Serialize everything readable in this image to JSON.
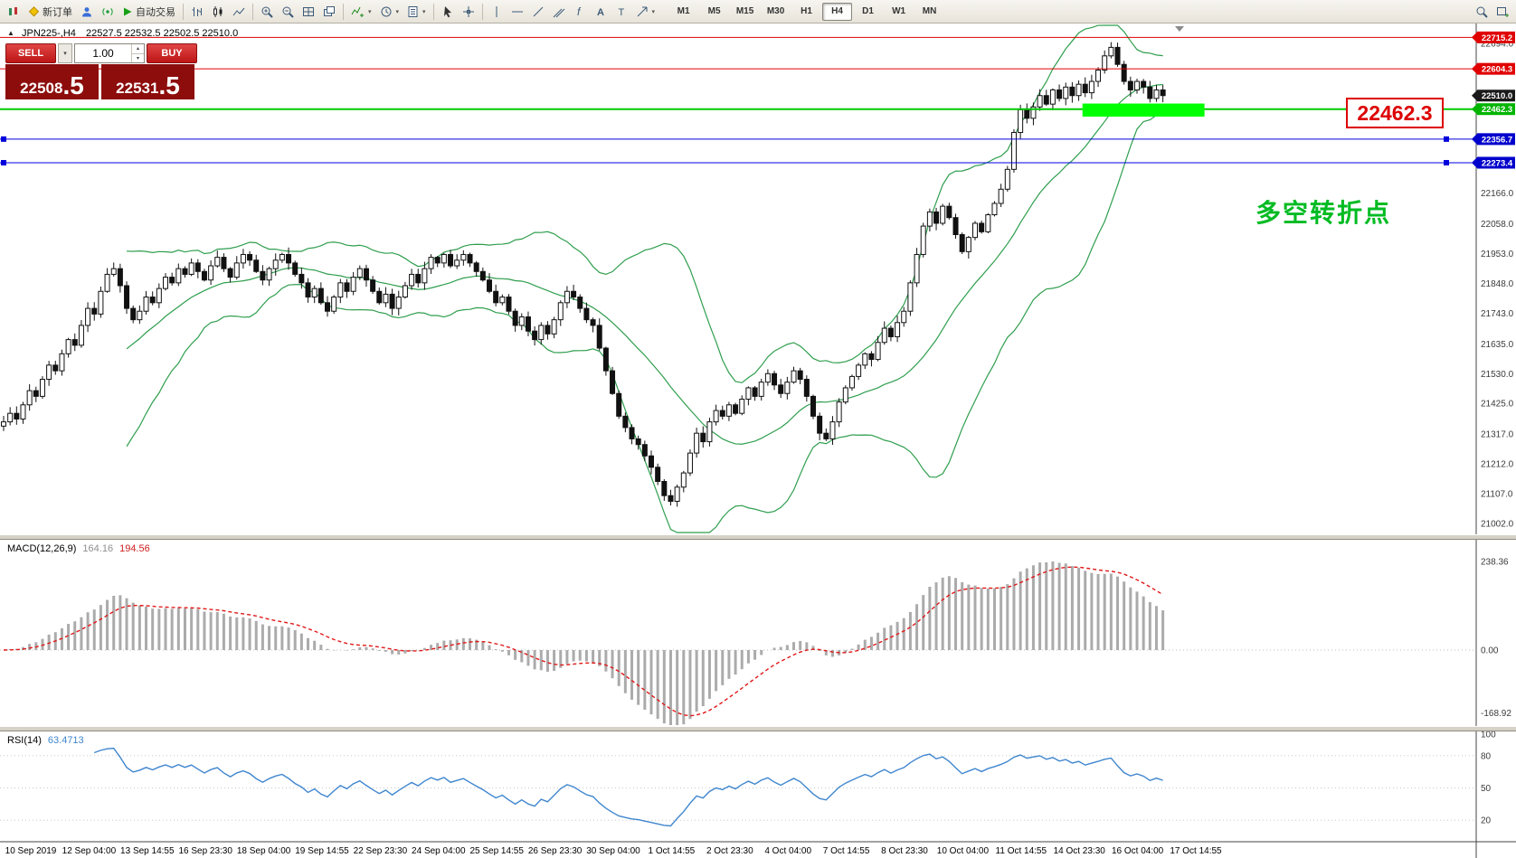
{
  "toolbar": {
    "new_order_label": "新订单",
    "autotrading_label": "自动交易",
    "timeframes": [
      "M1",
      "M5",
      "M15",
      "M30",
      "H1",
      "H4",
      "D1",
      "W1",
      "MN"
    ],
    "active_timeframe": "H4",
    "icon_names": [
      "app-icon",
      "new-order-icon",
      "profile-icon",
      "signal-icon",
      "autotrading-icon",
      "bar-chart-icon",
      "candlestick-chart-icon",
      "line-chart-icon",
      "zoom-in-icon",
      "zoom-out-icon",
      "tile-windows-icon",
      "cascade-windows-icon",
      "indicators-icon",
      "periods-icon",
      "templates-icon",
      "cursor-icon",
      "crosshair-icon",
      "vertical-line-icon",
      "horizontal-line-icon",
      "trendline-icon",
      "channel-icon",
      "fibonacci-icon",
      "text-icon",
      "label-icon",
      "arrow-icon",
      "search-icon",
      "new-chart-icon"
    ]
  },
  "chart": {
    "symbol_title": "JPN225-,H4",
    "ohlc_text": "22527.5 22532.5 22502.5 22510.0",
    "annotation_text": "多空转折点",
    "callout_text": "22462.3"
  },
  "trade": {
    "sell_label": "SELL",
    "buy_label": "BUY",
    "volume": "1.00",
    "sell_main": "22508",
    "sell_frac": ".5",
    "buy_main": "22531",
    "buy_frac": ".5"
  },
  "macd": {
    "title": "MACD(12,26,9)",
    "value_main": "164.16",
    "value_signal": "194.56"
  },
  "rsi": {
    "title": "RSI(14)",
    "value": "63.4713"
  },
  "chart_data": {
    "type": "candlestick",
    "symbol": "JPN225-",
    "timeframe": "H4",
    "closes": [
      21360,
      21390,
      21370,
      21420,
      21470,
      21450,
      21510,
      21560,
      21540,
      21600,
      21650,
      21630,
      21700,
      21760,
      21740,
      21820,
      21880,
      21900,
      21840,
      21760,
      21720,
      21750,
      21800,
      21780,
      21830,
      21870,
      21850,
      21900,
      21880,
      21920,
      21890,
      21860,
      21910,
      21940,
      21900,
      21870,
      21920,
      21950,
      21930,
      21890,
      21860,
      21900,
      21930,
      21950,
      21920,
      21880,
      21850,
      21800,
      21830,
      21780,
      21750,
      21800,
      21850,
      21820,
      21870,
      21900,
      21860,
      21820,
      21780,
      21810,
      21760,
      21800,
      21840,
      21880,
      21850,
      21900,
      21940,
      21920,
      21950,
      21910,
      21930,
      21950,
      21920,
      21890,
      21860,
      21820,
      21780,
      21800,
      21750,
      21700,
      21730,
      21680,
      21650,
      21700,
      21670,
      21720,
      21780,
      21820,
      21800,
      21760,
      21720,
      21700,
      21620,
      21540,
      21460,
      21380,
      21340,
      21300,
      21280,
      21240,
      21200,
      21150,
      21100,
      21080,
      21130,
      21180,
      21250,
      21320,
      21290,
      21360,
      21400,
      21380,
      21420,
      21390,
      21440,
      21480,
      21450,
      21500,
      21530,
      21490,
      21460,
      21500,
      21540,
      21510,
      21450,
      21380,
      21320,
      21300,
      21360,
      21430,
      21480,
      21520,
      21560,
      21600,
      21580,
      21640,
      21690,
      21660,
      21710,
      21750,
      21850,
      21950,
      22050,
      22100,
      22060,
      22120,
      22080,
      22020,
      21960,
      22010,
      22060,
      22030,
      22090,
      22130,
      22180,
      22250,
      22380,
      22460,
      22430,
      22470,
      22510,
      22480,
      22530,
      22500,
      22540,
      22510,
      22550,
      22520,
      22560,
      22600,
      22650,
      22680,
      22620,
      22560,
      22530,
      22560,
      22540,
      22500,
      22530,
      22510
    ],
    "price_axis_ticks": [
      "22694.0",
      "22166.0",
      "22058.0",
      "21953.0",
      "21848.0",
      "21743.0",
      "21635.0",
      "21530.0",
      "21425.0",
      "21317.0",
      "21212.0",
      "21107.0",
      "21002.0"
    ],
    "price_tags": [
      {
        "text": "22715.2",
        "price": 22715.2,
        "bg": "#e00000"
      },
      {
        "text": "22604.3",
        "price": 22604.3,
        "bg": "#e00000"
      },
      {
        "text": "22510.0",
        "price": 22510.0,
        "bg": "#1a1a1a"
      },
      {
        "text": "22462.3",
        "price": 22462.3,
        "bg": "#00b400"
      },
      {
        "text": "22356.7",
        "price": 22356.7,
        "bg": "#0000cc"
      },
      {
        "text": "22273.4",
        "price": 22273.4,
        "bg": "#0000cc"
      }
    ],
    "levels": [
      {
        "price": 22715.2,
        "color": "#e00000",
        "width": 1
      },
      {
        "price": 22604.3,
        "color": "#e00000",
        "width": 1
      },
      {
        "price": 22462.3,
        "color": "#00cc00",
        "width": 2
      },
      {
        "price": 22356.7,
        "color": "#0000dd",
        "width": 1,
        "handles": true
      },
      {
        "price": 22273.4,
        "color": "#0000dd",
        "width": 1,
        "handles": true
      }
    ],
    "highlight_rect": {
      "color": "#00ff00",
      "price_top": 22482,
      "price_bottom": 22436,
      "start_index": 167,
      "end_index": 185
    },
    "bollinger": {
      "period": 20,
      "deviation": 2,
      "color": "#2f9e4e"
    },
    "macd_panel": {
      "scale_labels": [
        "238.36",
        "0.00",
        "-168.92"
      ],
      "hist_color": "#ababab",
      "signal_color": "#e01818"
    },
    "rsi_panel": {
      "scale_labels": [
        "100",
        "80",
        "50",
        "20"
      ],
      "line_color": "#3f86cf",
      "level_lines": [
        80,
        50,
        20
      ]
    },
    "candle_up_color": "#ffffff",
    "candle_down_color": "#111111",
    "time_labels": [
      "10 Sep 2019",
      "12 Sep 04:00",
      "13 Sep 14:55",
      "16 Sep 23:30",
      "18 Sep 04:00",
      "19 Sep 14:55",
      "22 Sep 23:30",
      "24 Sep 04:00",
      "25 Sep 14:55",
      "26 Sep 23:30",
      "30 Sep 04:00",
      "1 Oct 14:55",
      "2 Oct 23:30",
      "4 Oct 04:00",
      "7 Oct 14:55",
      "8 Oct 23:30",
      "10 Oct 04:00",
      "11 Oct 14:55",
      "14 Oct 23:30",
      "16 Oct 04:00",
      "17 Oct 14:55"
    ]
  }
}
